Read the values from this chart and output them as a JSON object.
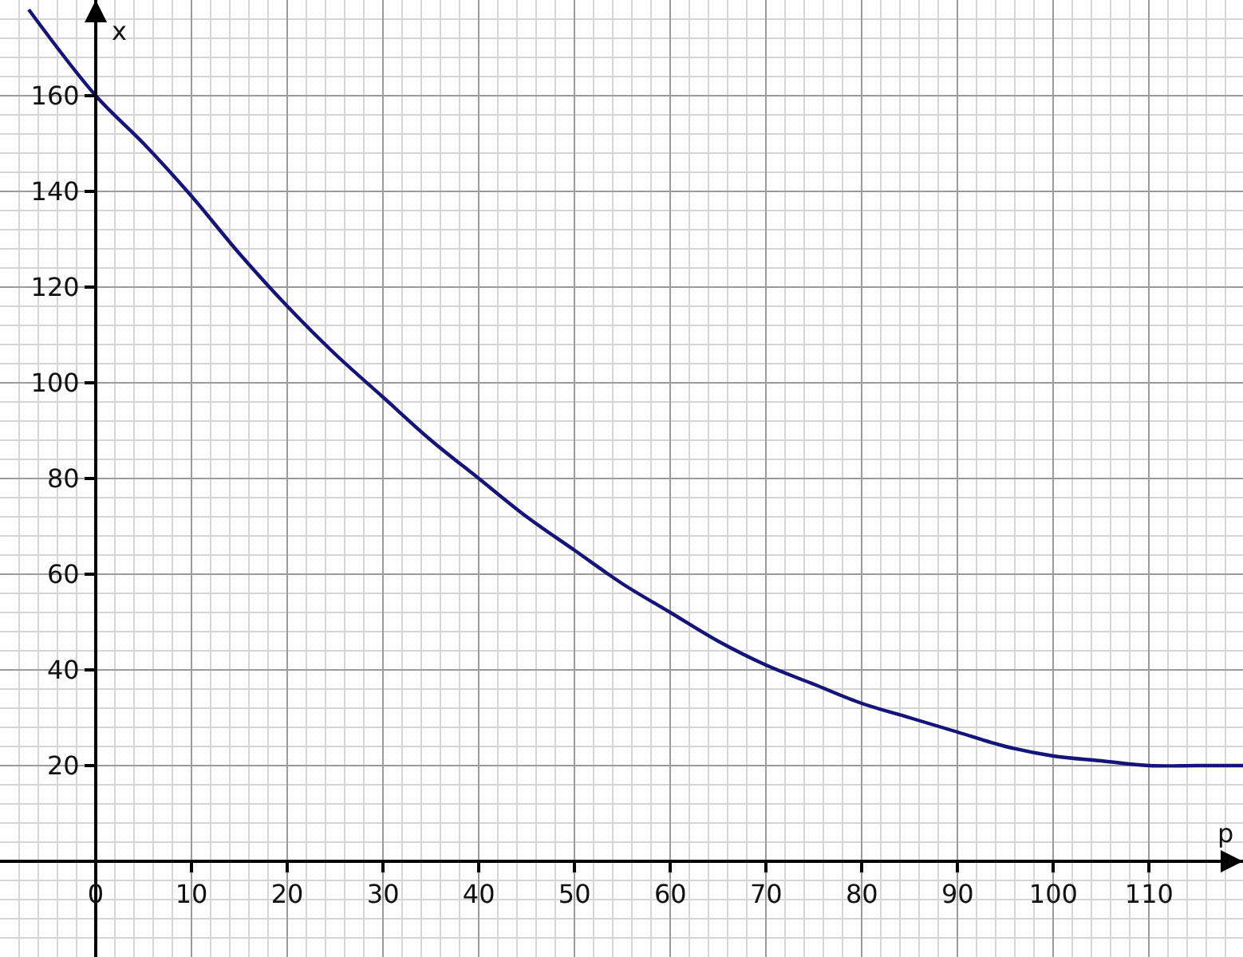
{
  "chart_data": {
    "type": "line",
    "xlabel": "p",
    "ylabel": "x",
    "x": [
      -7,
      0,
      5,
      10,
      15,
      20,
      25,
      30,
      35,
      40,
      45,
      50,
      55,
      60,
      65,
      70,
      75,
      80,
      85,
      90,
      95,
      100,
      105,
      110,
      115,
      119.8
    ],
    "series": [
      {
        "color": "#14147a",
        "values": [
          178,
          160,
          150,
          139,
          127,
          116,
          106,
          97,
          88,
          80,
          72,
          65,
          58,
          52,
          46,
          41,
          37,
          33,
          30,
          27,
          24,
          22,
          21,
          20,
          20,
          20
        ]
      }
    ],
    "xlim": [
      -10,
      119.8
    ],
    "ylim": [
      -20,
      180
    ],
    "xticks": [
      0,
      10,
      20,
      30,
      40,
      50,
      60,
      70,
      80,
      90,
      100,
      110
    ],
    "yticks": [
      20,
      40,
      60,
      80,
      100,
      120,
      140,
      160
    ],
    "grid": true,
    "legend": false,
    "marker": "none",
    "line_style": "solid"
  }
}
